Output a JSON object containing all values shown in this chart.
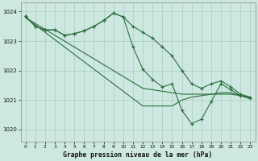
{
  "title": "Graphe pression niveau de la mer (hPa)",
  "background_color": "#cce8e0",
  "grid_color": "#aaccbf",
  "line_color": "#2d6e3e",
  "xlim": [
    -0.5,
    23.5
  ],
  "ylim": [
    1019.6,
    1024.3
  ],
  "yticks": [
    1020,
    1021,
    1022,
    1023,
    1024
  ],
  "xticks": [
    0,
    1,
    2,
    3,
    4,
    5,
    6,
    7,
    8,
    9,
    10,
    11,
    12,
    13,
    14,
    15,
    16,
    17,
    18,
    19,
    20,
    21,
    22,
    23
  ],
  "series_plain": [
    [
      1023.8,
      1023.55,
      1023.3,
      1023.05,
      1022.8,
      1022.55,
      1022.3,
      1022.05,
      1021.8,
      1021.55,
      1021.3,
      1021.05,
      1020.8,
      1020.8,
      1020.8,
      1020.8,
      1021.0,
      1021.1,
      1021.15,
      1021.2,
      1021.25,
      1021.25,
      1021.15,
      1021.05
    ],
    [
      1023.8,
      1023.6,
      1023.4,
      1023.2,
      1023.0,
      1022.8,
      1022.6,
      1022.4,
      1022.2,
      1022.0,
      1021.8,
      1021.6,
      1021.4,
      1021.35,
      1021.3,
      1021.25,
      1021.2,
      1021.2,
      1021.2,
      1021.2,
      1021.2,
      1021.2,
      1021.15,
      1021.1
    ]
  ],
  "series_marked": [
    [
      1023.85,
      1023.5,
      1023.38,
      1023.38,
      1023.2,
      1023.25,
      1023.35,
      1023.5,
      1023.7,
      1023.95,
      1023.82,
      1023.5,
      1023.3,
      1023.1,
      1022.8,
      1022.5,
      1022.0,
      1021.55,
      1021.4,
      1021.55,
      1021.65,
      1021.45,
      1021.2,
      1021.1
    ],
    [
      1023.85,
      1023.5,
      1023.38,
      1023.38,
      1023.2,
      1023.25,
      1023.35,
      1023.5,
      1023.7,
      1023.95,
      1023.82,
      1022.8,
      1022.05,
      1021.7,
      1021.45,
      1021.55,
      1020.65,
      1020.2,
      1020.35,
      1020.95,
      1021.55,
      1021.35,
      1021.15,
      1021.05
    ]
  ]
}
